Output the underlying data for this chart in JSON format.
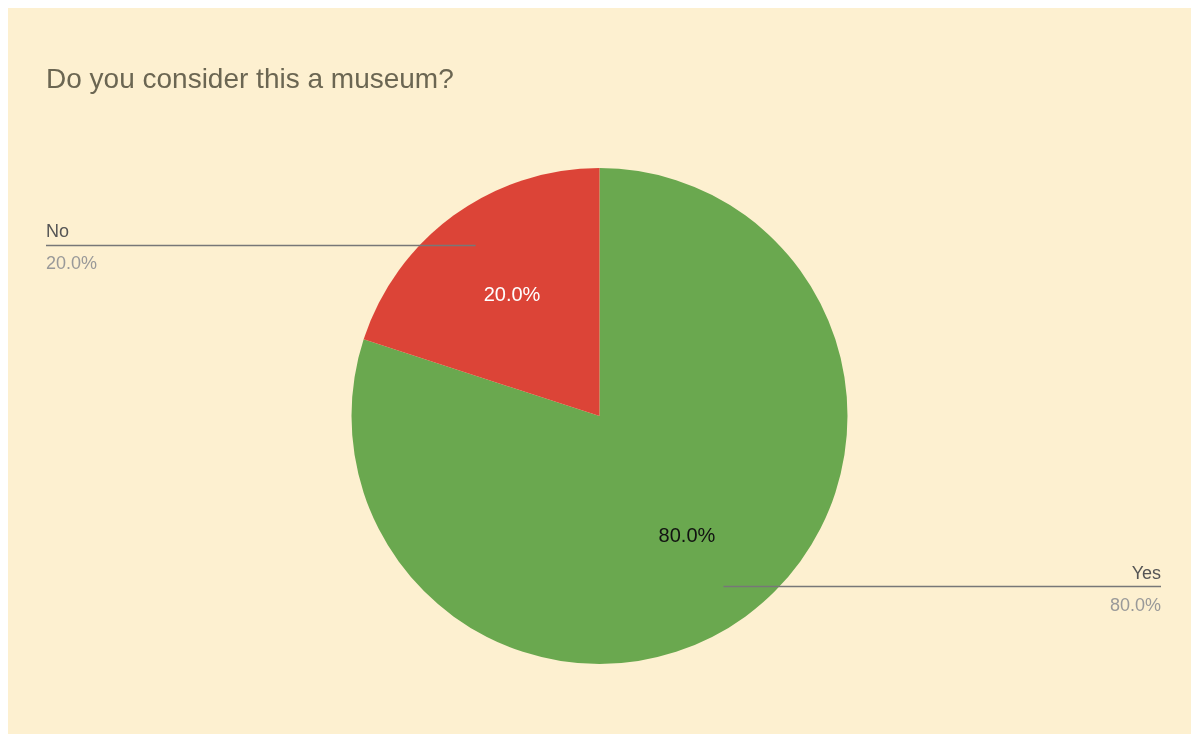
{
  "chart_data": {
    "type": "pie",
    "title": "Do you consider this a museum?",
    "categories": [
      "Yes",
      "No"
    ],
    "values": [
      80,
      20
    ],
    "colors": [
      "#6aa84f",
      "#dc4437"
    ],
    "value_labels": [
      "80.0%",
      "20.0%"
    ],
    "legend": false
  }
}
